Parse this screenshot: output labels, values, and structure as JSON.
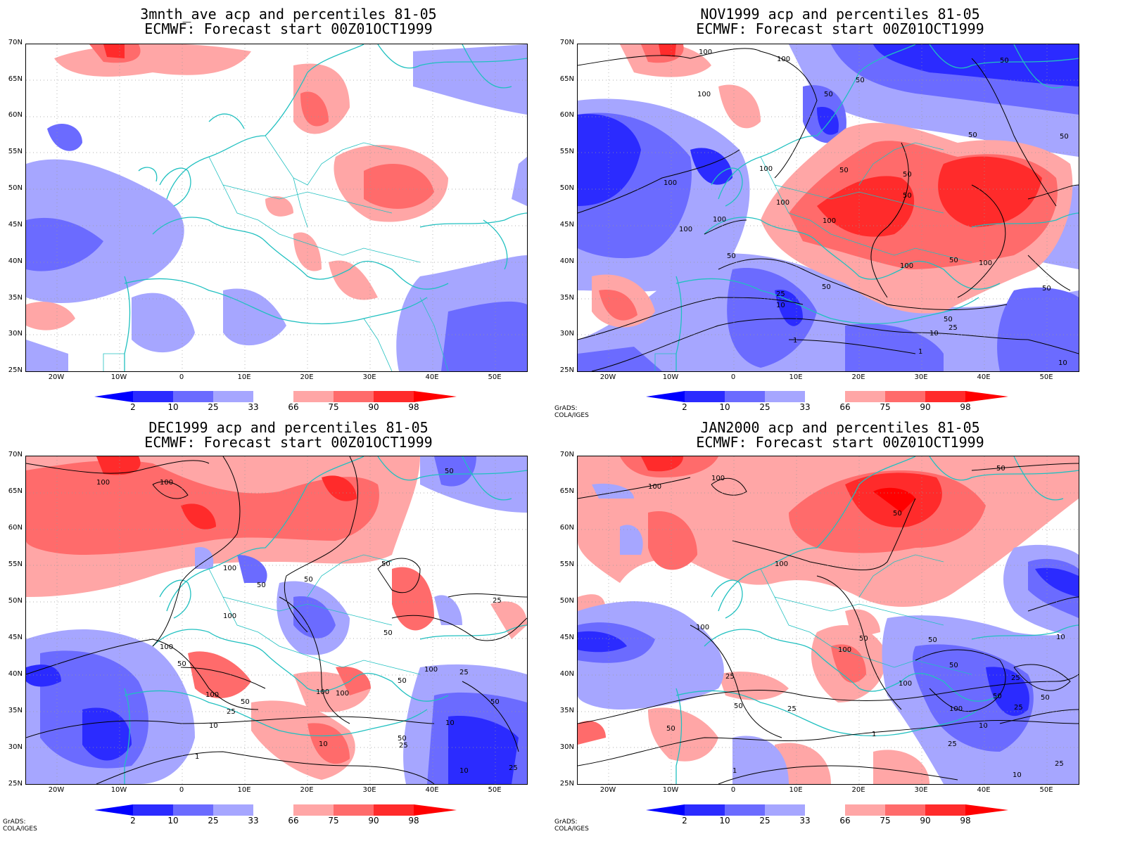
{
  "panels": [
    {
      "title1": "3mnth_ave acp and percentiles 81-05",
      "title2": "ECMWF: Forecast start 00Z01OCT1999",
      "credit": ""
    },
    {
      "title1": "NOV1999 acp and percentiles 81-05",
      "title2": "ECMWF: Forecast start 00Z01OCT1999",
      "credit": "GrADS: COLA/IGES"
    },
    {
      "title1": "DEC1999 acp and percentiles 81-05",
      "title2": "ECMWF: Forecast start 00Z01OCT1999",
      "credit": "GrADS: COLA/IGES"
    },
    {
      "title1": "JAN2000 acp and percentiles 81-05",
      "title2": "ECMWF: Forecast start 00Z01OCT1999",
      "credit": "GrADS: COLA/IGES"
    }
  ],
  "lat_labels": [
    "70N",
    "65N",
    "60N",
    "55N",
    "50N",
    "45N",
    "40N",
    "35N",
    "30N",
    "25N"
  ],
  "lon_labels": [
    "20W",
    "10W",
    "0",
    "10E",
    "20E",
    "30E",
    "40E",
    "50E"
  ],
  "colorbar": {
    "labels": [
      "2",
      "10",
      "25",
      "33",
      "66",
      "75",
      "90",
      "98"
    ],
    "colors": {
      "lt2": "#0000ff",
      "b2_10": "#2b2bff",
      "b10_25": "#6b6bff",
      "b25_33": "#a6a6ff",
      "mid": "#ffffff",
      "r66_75": "#ffa6a6",
      "r75_90": "#ff6b6b",
      "r90_98": "#ff2b2b",
      "gt98": "#ff0000"
    }
  },
  "map_style": {
    "coast_color": "#20c0c0",
    "contour_color": "#000000",
    "grid": "dotted"
  },
  "contour_labels": {
    "nov": [
      "100",
      "100",
      "100",
      "50",
      "50",
      "50",
      "50",
      "50",
      "100",
      "100",
      "50",
      "50",
      "100",
      "100",
      "100",
      "100",
      "50",
      "100",
      "100",
      "50",
      "50",
      "50",
      "50",
      "25",
      "10",
      "1",
      "1",
      "10",
      "25",
      "10",
      "50"
    ],
    "dec": [
      "100",
      "100",
      "50",
      "100",
      "50",
      "50",
      "50",
      "25",
      "100",
      "100",
      "50",
      "50",
      "100",
      "100",
      "50",
      "100",
      "100",
      "50",
      "25",
      "10",
      "10",
      "10",
      "25",
      "1",
      "50",
      "50",
      "25",
      "10",
      "25"
    ],
    "jan": [
      "100",
      "100",
      "50",
      "100",
      "50",
      "100",
      "50",
      "100",
      "50",
      "50",
      "25",
      "50",
      "25",
      "50",
      "25",
      "100",
      "50",
      "100",
      "1",
      "10",
      "10",
      "25",
      "10",
      "25",
      "50",
      "1",
      "25"
    ]
  }
}
